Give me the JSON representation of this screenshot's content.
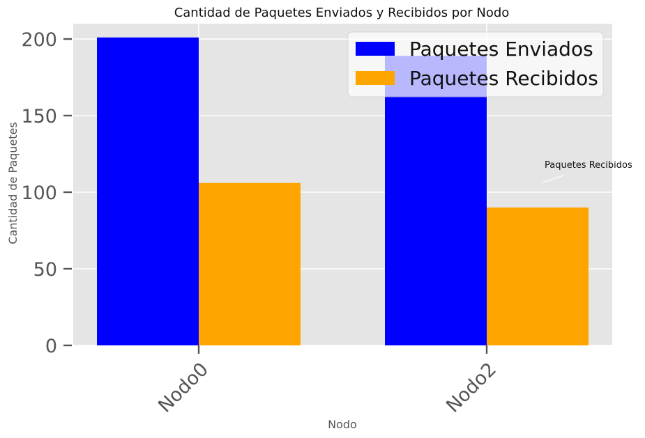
{
  "chart_data": {
    "type": "bar",
    "title": "Cantidad de Paquetes Enviados y Recibidos por Nodo",
    "xlabel": "Nodo",
    "ylabel": "Cantidad de Paquetes",
    "categories": [
      "Nodo0",
      "Nodo2"
    ],
    "series": [
      {
        "name": "Paquetes Enviados",
        "values": [
          201,
          189
        ],
        "color": "#0000ff"
      },
      {
        "name": "Paquetes Recibidos",
        "values": [
          106,
          90
        ],
        "color": "#ffa500"
      }
    ],
    "ylim": [
      0,
      210
    ],
    "yticks": [
      0,
      50,
      100,
      150,
      200
    ],
    "grid": true,
    "legend_position": "top-right",
    "annotations": [
      {
        "text": "Paquetes Recibidos"
      }
    ],
    "colors": {
      "plot_background": "#e5e5e5",
      "grid": "#ffffff",
      "text": "#555555"
    }
  }
}
